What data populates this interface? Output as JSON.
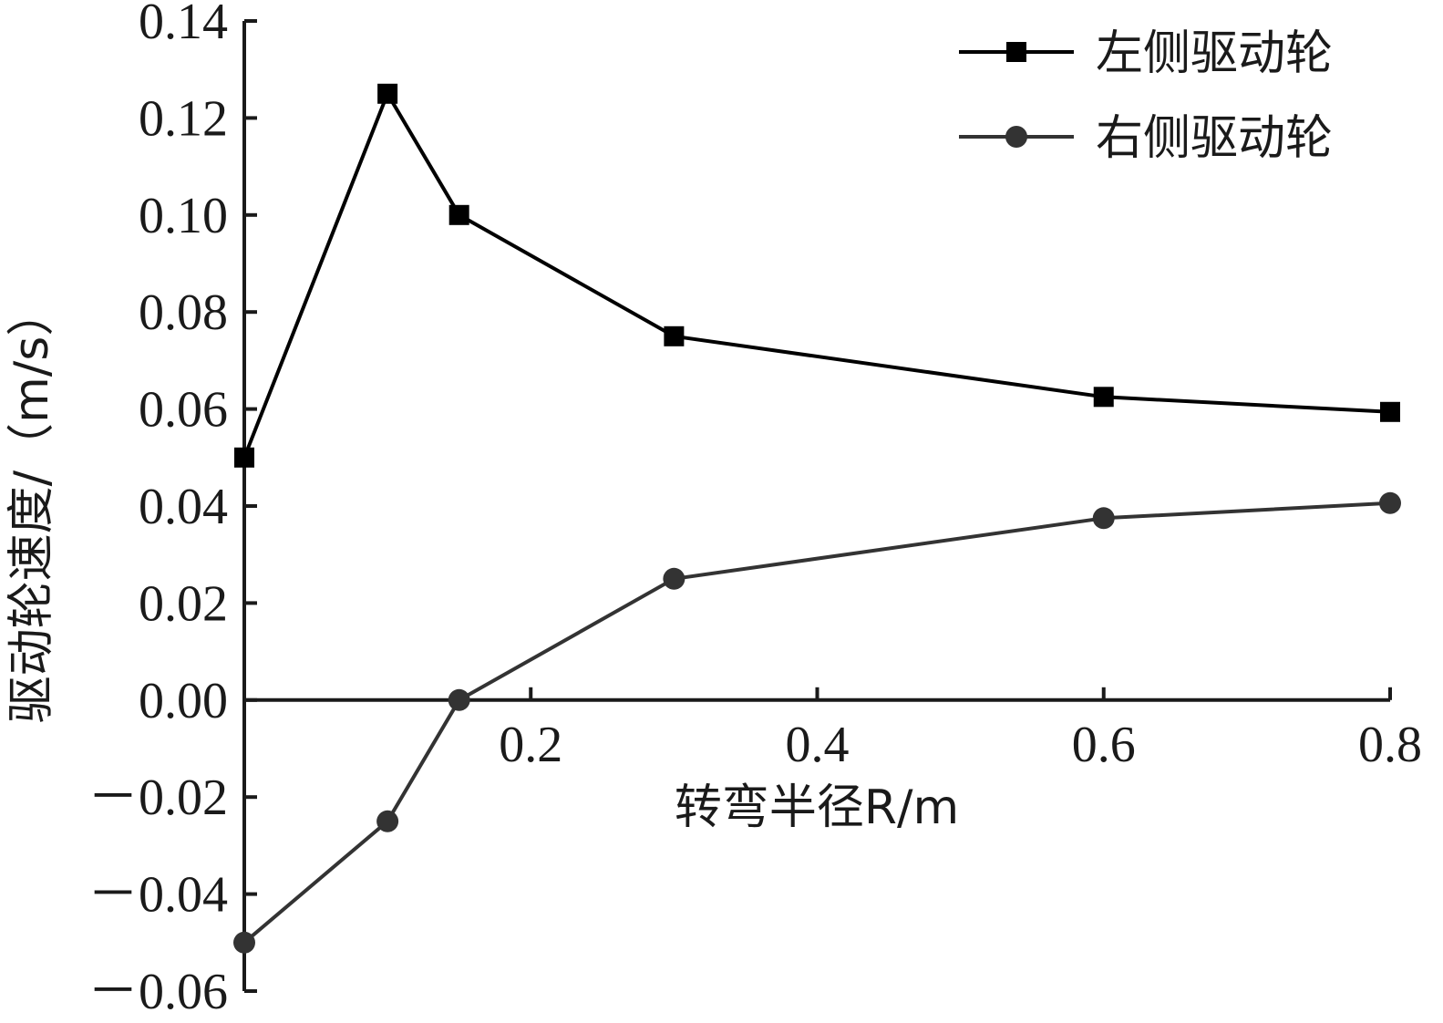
{
  "chart_data": {
    "type": "line",
    "xlabel": "转弯半径R/m",
    "ylabel": "驱动轮速度/（m/s）",
    "xlim": [
      0,
      0.8
    ],
    "ylim": [
      -0.06,
      0.14
    ],
    "xticks": [
      0.2,
      0.4,
      0.6,
      0.8
    ],
    "xtick_labels": [
      "0.2",
      "0.4",
      "0.6",
      "0.8"
    ],
    "yticks": [
      -0.06,
      -0.04,
      -0.02,
      0.0,
      0.02,
      0.04,
      0.06,
      0.08,
      0.1,
      0.12,
      0.14
    ],
    "ytick_labels": [
      "－0.06",
      "－0.04",
      "－0.02",
      "0.00",
      "0.02",
      "0.04",
      "0.06",
      "0.08",
      "0.10",
      "0.12",
      "0.14"
    ],
    "grid": false,
    "legend_position": "top-right",
    "series": [
      {
        "name": "左侧驱动轮",
        "marker": "square",
        "color": "#000000",
        "x": [
          0.0,
          0.1,
          0.15,
          0.3,
          0.6,
          0.8
        ],
        "y": [
          0.05,
          0.125,
          0.1,
          0.075,
          0.0625,
          0.0594
        ]
      },
      {
        "name": "右侧驱动轮",
        "marker": "circle",
        "color": "#333333",
        "x": [
          0.0,
          0.1,
          0.15,
          0.3,
          0.6,
          0.8
        ],
        "y": [
          -0.05,
          -0.025,
          0.0,
          0.025,
          0.0375,
          0.0406
        ]
      }
    ]
  }
}
